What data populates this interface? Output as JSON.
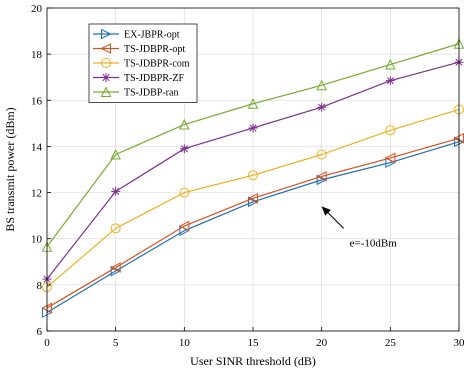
{
  "chart_data": {
    "type": "line",
    "title": "",
    "xlabel": "User SINR threshold (dB)",
    "ylabel": "BS transmit power (dBm)",
    "x": [
      0,
      5,
      10,
      15,
      20,
      25,
      30
    ],
    "xlim": [
      0,
      30
    ],
    "ylim": [
      6,
      20
    ],
    "xticks": [
      0,
      5,
      10,
      15,
      20,
      25,
      30
    ],
    "yticks": [
      6,
      8,
      10,
      12,
      14,
      16,
      18,
      20
    ],
    "grid": true,
    "legend_position": "top-left",
    "series": [
      {
        "name": "EX-JBPR-opt",
        "color": "#1f6fb5",
        "marker": "triangle-right",
        "values": [
          6.8,
          8.6,
          10.35,
          11.6,
          12.55,
          13.3,
          14.2
        ]
      },
      {
        "name": "TS-JDBPR-opt",
        "color": "#d9531e",
        "marker": "triangle-left",
        "values": [
          7.0,
          8.75,
          10.55,
          11.75,
          12.7,
          13.5,
          14.35
        ]
      },
      {
        "name": "TS-JDBPR-com",
        "color": "#edb120",
        "marker": "circle",
        "values": [
          7.9,
          10.45,
          12.0,
          12.75,
          13.65,
          14.7,
          15.6
        ]
      },
      {
        "name": "TS-JDBPR-ZF",
        "color": "#7e2f8e",
        "marker": "star",
        "values": [
          8.25,
          12.05,
          13.9,
          14.8,
          15.7,
          16.85,
          17.65
        ]
      },
      {
        "name": "TS-JDBP-ran",
        "color": "#77ac30",
        "marker": "triangle-up",
        "values": [
          9.65,
          13.65,
          14.95,
          15.85,
          16.65,
          17.55,
          18.45
        ]
      }
    ],
    "annotation": {
      "text": "e=-10dBm",
      "arrow_to": [
        20,
        11.4
      ]
    }
  }
}
